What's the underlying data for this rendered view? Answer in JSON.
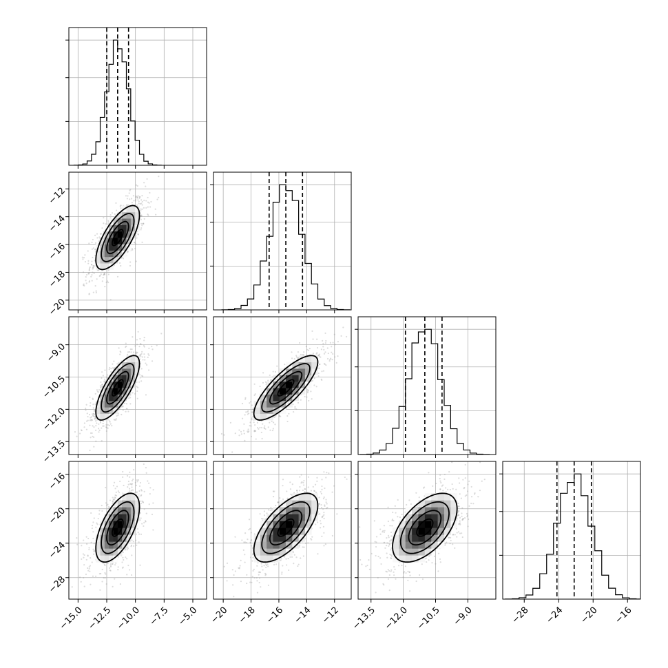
{
  "chart_data": {
    "type": "corner",
    "grid": true,
    "title": "",
    "parameters": [
      {
        "index": 0,
        "label": "",
        "range": [
          -15.8,
          -3.8
        ],
        "ticks": [
          -15.0,
          -12.5,
          -10.0,
          -7.5,
          -5.0
        ],
        "tick_labels": [
          "−15.0",
          "−12.5",
          "−10.0",
          "−7.5",
          "−5.0"
        ],
        "median": -11.55,
        "q16": -12.5,
        "q84": -10.6,
        "sigma": 0.95
      },
      {
        "index": 1,
        "label": "",
        "range": [
          -20.7,
          -10.8
        ],
        "ticks": [
          -20,
          -18,
          -16,
          -14,
          -12
        ],
        "tick_labels": [
          "−20",
          "−18",
          "−16",
          "−14",
          "−12"
        ],
        "median": -15.5,
        "q16": -16.7,
        "q84": -14.3,
        "sigma": 1.15
      },
      {
        "index": 2,
        "label": "",
        "range": [
          -14.1,
          -7.7
        ],
        "ticks": [
          -13.5,
          -12.0,
          -10.5,
          -9.0
        ],
        "tick_labels": [
          "−13.5",
          "−12.0",
          "−10.5",
          "−9.0"
        ],
        "median": -11.0,
        "q16": -11.9,
        "q84": -10.2,
        "sigma": 0.75
      },
      {
        "index": 3,
        "label": "",
        "range": [
          -30.5,
          -14.5
        ],
        "ticks": [
          -28,
          -24,
          -20,
          -16
        ],
        "tick_labels": [
          "−28",
          "−24",
          "−20",
          "−16"
        ],
        "median": -22.2,
        "q16": -24.2,
        "q84": -20.2,
        "sigma": 2.0
      }
    ],
    "correlations": [
      [
        1,
        0.7,
        0.75,
        0.6
      ],
      [
        0.7,
        1,
        0.8,
        0.65
      ],
      [
        0.75,
        0.8,
        1,
        0.55
      ],
      [
        0.6,
        0.65,
        0.55,
        1
      ]
    ],
    "contour_levels_sigma": [
      0.5,
      1.0,
      1.5,
      2.0
    ],
    "quantiles": [
      0.16,
      0.5,
      0.84
    ],
    "histogram_bins": 20
  }
}
